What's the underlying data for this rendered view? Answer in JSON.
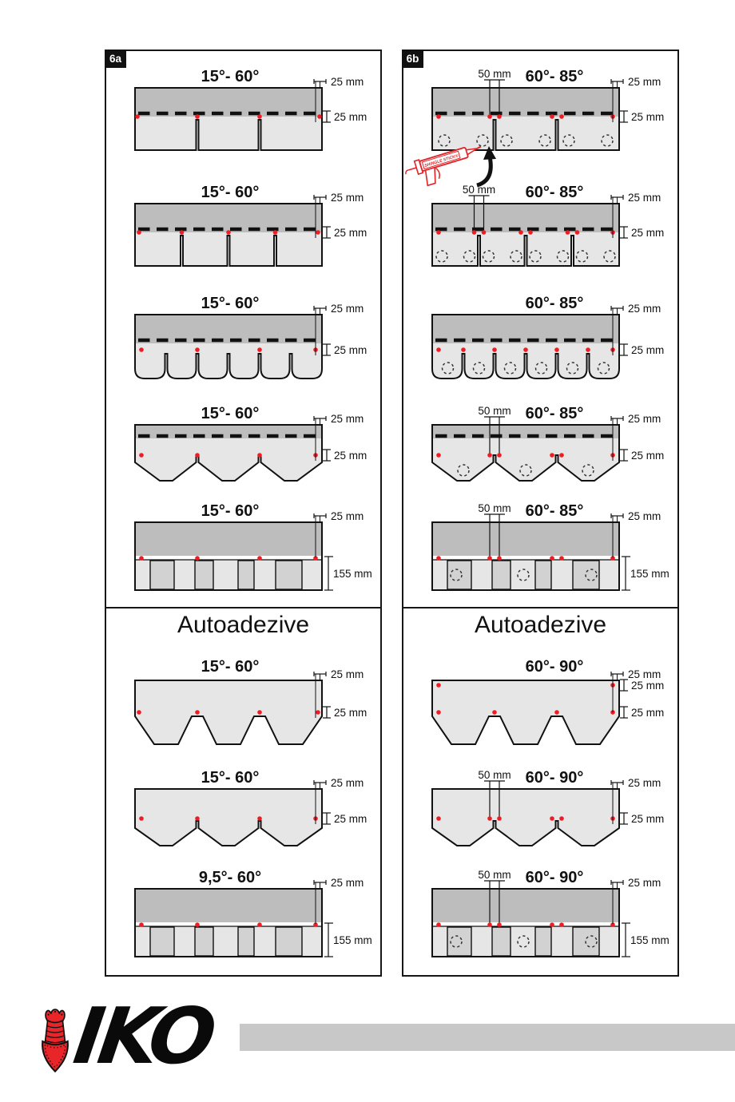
{
  "colors": {
    "dark_gray": "#bdbdbd",
    "light_gray": "#e6e6e6",
    "mid_gray": "#d9d9d9",
    "brick_gray": "#d2d2d2",
    "nail_red": "#ee1c25",
    "stick_red": "#e32228",
    "bar_gray": "#c8c8c8",
    "emblem_red": "#e8262a",
    "line": "#111111"
  },
  "panels": [
    {
      "badge": "6a",
      "section_title": "Autoadezive",
      "top": [
        {
          "type": "tab3",
          "title": "15°- 60°",
          "m_top": "25 mm",
          "m_mid": "25 mm",
          "nails": [
            3,
            78,
            156,
            231
          ]
        },
        {
          "type": "tab4",
          "title": "15°- 60°",
          "m_top": "25 mm",
          "m_mid": "25 mm",
          "nails": [
            5,
            58.5,
            117,
            175.5,
            229
          ]
        },
        {
          "type": "round6",
          "title": "15°- 60°",
          "m_top": "25 mm",
          "m_mid": "25 mm",
          "nails": [
            8,
            78,
            156,
            226
          ]
        },
        {
          "type": "hex3s",
          "title": "15°- 60°",
          "m_top": "25 mm",
          "m_mid": "25 mm",
          "nails": [
            8,
            78,
            156,
            226
          ]
        },
        {
          "type": "brick",
          "title": "15°- 60°",
          "m_top": "25 mm",
          "m_h": "155 mm",
          "nails": [
            8,
            78,
            156,
            226
          ]
        }
      ],
      "bottom": [
        {
          "type": "hextab",
          "title": "15°- 60°",
          "m_top": "25 mm",
          "m_mid": "25 mm",
          "nails": [
            5,
            78,
            156,
            229
          ]
        },
        {
          "type": "hex3p",
          "title": "15°- 60°",
          "m_top": "25 mm",
          "m_mid": "25 mm",
          "nails": [
            8,
            78,
            156,
            226
          ]
        },
        {
          "type": "brick",
          "title": "9,5°- 60°",
          "m_top": "25 mm",
          "m_h": "155 mm",
          "nails": [
            8,
            78,
            156,
            226
          ]
        }
      ]
    },
    {
      "badge": "6b",
      "section_title": "Autoadezive",
      "shingle_stick_label": "SHINGLE STICK®",
      "top": [
        {
          "type": "tab3",
          "title": "60°- 85°",
          "fifty": "50 mm",
          "m_top": "25 mm",
          "m_mid": "25 mm",
          "nails": [
            8,
            72,
            84,
            150,
            162,
            226
          ],
          "dots": 2,
          "stick": true
        },
        {
          "type": "tab4",
          "title": "60°- 85°",
          "fifty": "50 mm",
          "m_top": "25 mm",
          "m_mid": "25 mm",
          "nails": [
            8,
            52.5,
            64.5,
            111,
            123,
            169.5,
            181.5,
            226
          ],
          "dots": 2
        },
        {
          "type": "round6",
          "title": "60°- 85°",
          "m_top": "25 mm",
          "m_mid": "25 mm",
          "nails": [
            8,
            39,
            78,
            117,
            156,
            195,
            226
          ],
          "dots": 1
        },
        {
          "type": "hex3s",
          "title": "60°- 85°",
          "fifty": "50 mm",
          "m_top": "25 mm",
          "m_mid": "25 mm",
          "nails": [
            8,
            72,
            84,
            150,
            162,
            226
          ],
          "dots": 1
        },
        {
          "type": "brick",
          "title": "60°- 85°",
          "fifty": "50 mm",
          "m_top": "25 mm",
          "m_h": "155 mm",
          "nails": [
            8,
            72,
            84,
            150,
            162,
            226
          ],
          "dots": 3
        }
      ],
      "bottom": [
        {
          "type": "hextab",
          "title": "60°- 90°",
          "m_top": "25 mm",
          "rows": [
            "25 mm",
            "25 mm"
          ],
          "nails": [
            8,
            78,
            156,
            226
          ],
          "nails_upper": [
            8,
            226
          ]
        },
        {
          "type": "hex3p",
          "title": "60°- 90°",
          "fifty": "50 mm",
          "m_top": "25 mm",
          "m_mid": "25 mm",
          "nails": [
            8,
            72,
            84,
            150,
            162,
            226
          ]
        },
        {
          "type": "brick",
          "title": "60°- 90°",
          "fifty": "50 mm",
          "m_top": "25 mm",
          "m_h": "155 mm",
          "nails": [
            8,
            72,
            84,
            150,
            162,
            226
          ],
          "dots": 3
        }
      ]
    }
  ],
  "logo": {
    "text": "IKO"
  }
}
